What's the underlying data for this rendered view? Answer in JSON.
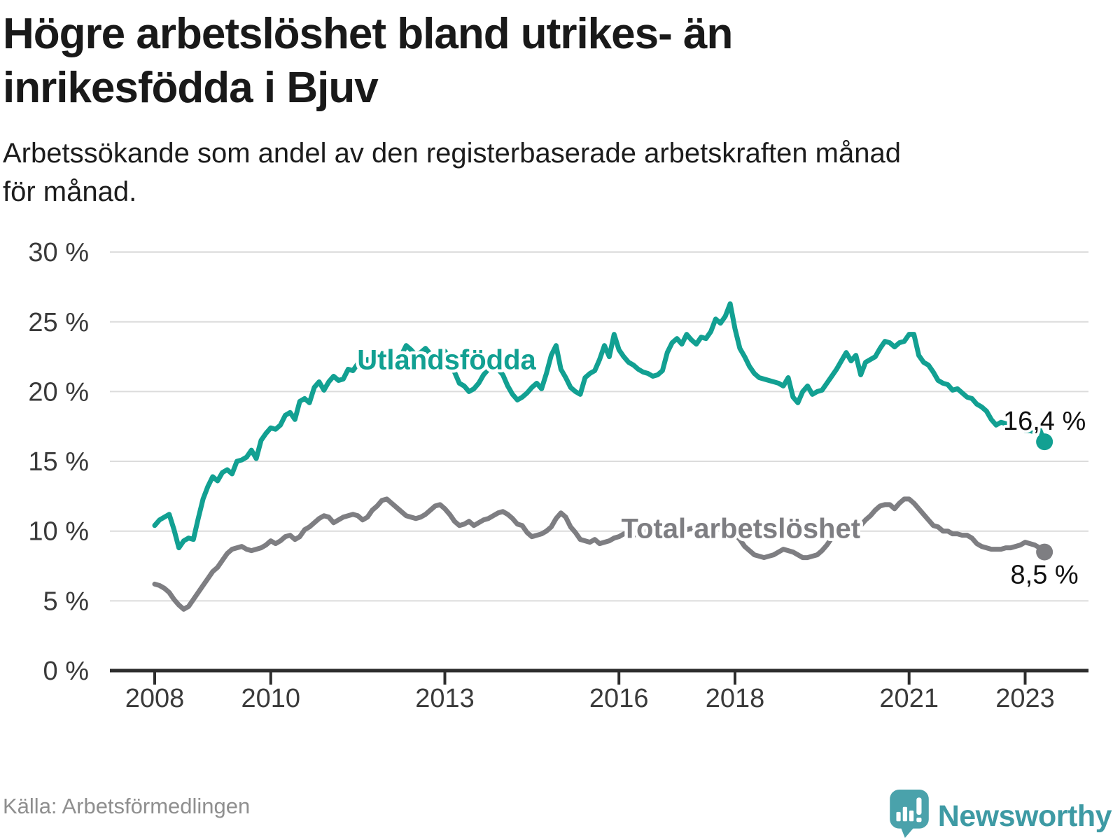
{
  "title": "Högre arbetslöshet bland utrikes- än inrikesfödda i Bjuv",
  "title_lines": [
    "Högre arbetslöshet bland utrikes- än",
    "inrikesfödda i Bjuv"
  ],
  "subtitle": "Arbetssökande som andel av den registerbaserade arbetskraften månad för månad.",
  "subtitle_lines": [
    "Arbetssökande som andel av den registerbaserade arbetskraften månad",
    "för månad."
  ],
  "source": "Källa: Arbetsförmedlingen",
  "brand": {
    "name": "Newsworthy",
    "icon": "newsworthy-speech-bubble-bar-chart-icon",
    "text_color": "#3e9aa4",
    "icon_color": "#4aa2ab"
  },
  "colors": {
    "foreign_born_line": "#12a092",
    "total_line": "#7e7e82",
    "gridline": "#dcdcdc",
    "axis": "#2d2d2d",
    "tick_label": "#3a3a3a",
    "end_label": "#111111",
    "background": "#ffffff"
  },
  "chart_data": {
    "type": "line",
    "x_start_year": 2008,
    "x_interval": "monthly",
    "x_ticks": [
      2008,
      2010,
      2013,
      2016,
      2018,
      2021,
      2023
    ],
    "ylim": [
      0,
      31
    ],
    "grid": "horizontal",
    "legend_position": "inline-labels",
    "y_ticks": [
      {
        "value": 30,
        "label": "30 %"
      },
      {
        "value": 25,
        "label": "25 %"
      },
      {
        "value": 20,
        "label": "20 %"
      },
      {
        "value": 15,
        "label": "15 %"
      },
      {
        "value": 10,
        "label": "10 %"
      },
      {
        "value": 5,
        "label": "5 %"
      },
      {
        "value": 0,
        "label": "0 %"
      }
    ],
    "series": [
      {
        "name": "Utlandsfödda",
        "color": "#12a092",
        "label": {
          "text": "Utlandsfödda",
          "year": 2013.03,
          "value": 21.6
        },
        "end_label": {
          "text": "16,4 %",
          "dy": -17
        },
        "end_value": 16.4,
        "values": [
          10.4,
          10.8,
          11.0,
          11.2,
          10.1,
          8.8,
          9.3,
          9.5,
          9.4,
          10.9,
          12.3,
          13.2,
          13.9,
          13.6,
          14.2,
          14.4,
          14.1,
          15.0,
          15.1,
          15.3,
          15.8,
          15.2,
          16.5,
          17.0,
          17.4,
          17.3,
          17.6,
          18.3,
          18.5,
          18.0,
          19.3,
          19.5,
          19.2,
          20.3,
          20.7,
          20.1,
          20.7,
          21.1,
          20.8,
          20.9,
          21.6,
          21.5,
          22.0,
          22.2,
          22.3,
          21.9,
          22.0,
          22.1,
          22.5,
          22.3,
          22.5,
          22.6,
          23.3,
          23.0,
          22.6,
          22.8,
          23.1,
          22.7,
          22.4,
          22.6,
          22.9,
          22.4,
          21.4,
          20.6,
          20.4,
          20.0,
          20.2,
          20.6,
          21.2,
          21.6,
          21.9,
          21.6,
          21.2,
          20.4,
          19.8,
          19.4,
          19.6,
          19.9,
          20.3,
          20.6,
          20.2,
          21.3,
          22.6,
          23.3,
          21.6,
          21.0,
          20.3,
          20.0,
          19.8,
          21.0,
          21.3,
          21.5,
          22.3,
          23.3,
          22.5,
          24.1,
          23.0,
          22.5,
          22.1,
          21.9,
          21.6,
          21.4,
          21.3,
          21.1,
          21.2,
          21.5,
          22.8,
          23.5,
          23.8,
          23.4,
          24.1,
          23.7,
          23.4,
          23.9,
          23.8,
          24.3,
          25.2,
          24.9,
          25.4,
          26.3,
          24.5,
          23.1,
          22.5,
          21.8,
          21.3,
          21.0,
          20.9,
          20.8,
          20.7,
          20.6,
          20.4,
          21.0,
          19.6,
          19.2,
          20.0,
          20.4,
          19.8,
          20.0,
          20.1,
          20.6,
          21.1,
          21.6,
          22.2,
          22.8,
          22.2,
          22.6,
          21.2,
          22.1,
          22.3,
          22.5,
          23.1,
          23.6,
          23.5,
          23.2,
          23.5,
          23.6,
          24.1,
          24.1,
          22.6,
          22.1,
          21.9,
          21.4,
          20.8,
          20.6,
          20.5,
          20.1,
          20.2,
          19.9,
          19.6,
          19.5,
          19.1,
          18.9,
          18.6,
          18.0,
          17.6,
          17.8,
          17.7,
          17.5,
          17.3,
          17.5,
          17.2,
          17.2,
          17.1,
          17.3,
          16.4
        ]
      },
      {
        "name": "Total arbetslöshet",
        "color": "#7e7e82",
        "label": {
          "text": "Total arbetslöshet",
          "year": 2018.1,
          "value": 9.5
        },
        "end_label": {
          "text": "8,5 %",
          "dy": 45
        },
        "end_value": 8.5,
        "values": [
          6.2,
          6.1,
          5.9,
          5.6,
          5.1,
          4.7,
          4.4,
          4.6,
          5.1,
          5.6,
          6.1,
          6.6,
          7.1,
          7.4,
          7.9,
          8.4,
          8.7,
          8.8,
          8.9,
          8.7,
          8.6,
          8.7,
          8.8,
          9.0,
          9.3,
          9.1,
          9.3,
          9.6,
          9.7,
          9.4,
          9.6,
          10.1,
          10.3,
          10.6,
          10.9,
          11.1,
          11.0,
          10.6,
          10.8,
          11.0,
          11.1,
          11.2,
          11.1,
          10.8,
          11.0,
          11.5,
          11.8,
          12.2,
          12.3,
          12.0,
          11.7,
          11.4,
          11.1,
          11.0,
          10.9,
          11.0,
          11.2,
          11.5,
          11.8,
          11.9,
          11.6,
          11.2,
          10.7,
          10.4,
          10.5,
          10.7,
          10.4,
          10.6,
          10.8,
          10.9,
          11.1,
          11.3,
          11.4,
          11.2,
          10.9,
          10.5,
          10.4,
          9.9,
          9.6,
          9.7,
          9.8,
          10.0,
          10.3,
          10.9,
          11.3,
          11.0,
          10.3,
          9.9,
          9.4,
          9.3,
          9.2,
          9.4,
          9.1,
          9.2,
          9.3,
          9.5,
          9.6,
          9.8,
          9.9,
          9.7,
          9.8,
          10.0,
          10.1,
          10.0,
          10.2,
          10.3,
          10.4,
          10.3,
          10.2,
          10.0,
          10.1,
          10.2,
          10.0,
          10.2,
          10.4,
          10.5,
          10.6,
          10.5,
          10.3,
          10.2,
          9.8,
          9.4,
          8.9,
          8.6,
          8.3,
          8.2,
          8.1,
          8.2,
          8.3,
          8.5,
          8.7,
          8.6,
          8.5,
          8.3,
          8.1,
          8.1,
          8.2,
          8.3,
          8.6,
          9.0,
          9.5,
          10.0,
          10.2,
          10.2,
          10.1,
          10.2,
          10.4,
          10.8,
          11.1,
          11.5,
          11.8,
          11.9,
          11.9,
          11.6,
          12.0,
          12.3,
          12.3,
          12.0,
          11.6,
          11.2,
          10.8,
          10.4,
          10.3,
          10.0,
          10.0,
          9.8,
          9.8,
          9.7,
          9.7,
          9.5,
          9.1,
          8.9,
          8.8,
          8.7,
          8.7,
          8.7,
          8.8,
          8.8,
          8.9,
          9.0,
          9.2,
          9.1,
          9.0,
          8.8,
          8.5
        ]
      }
    ]
  }
}
